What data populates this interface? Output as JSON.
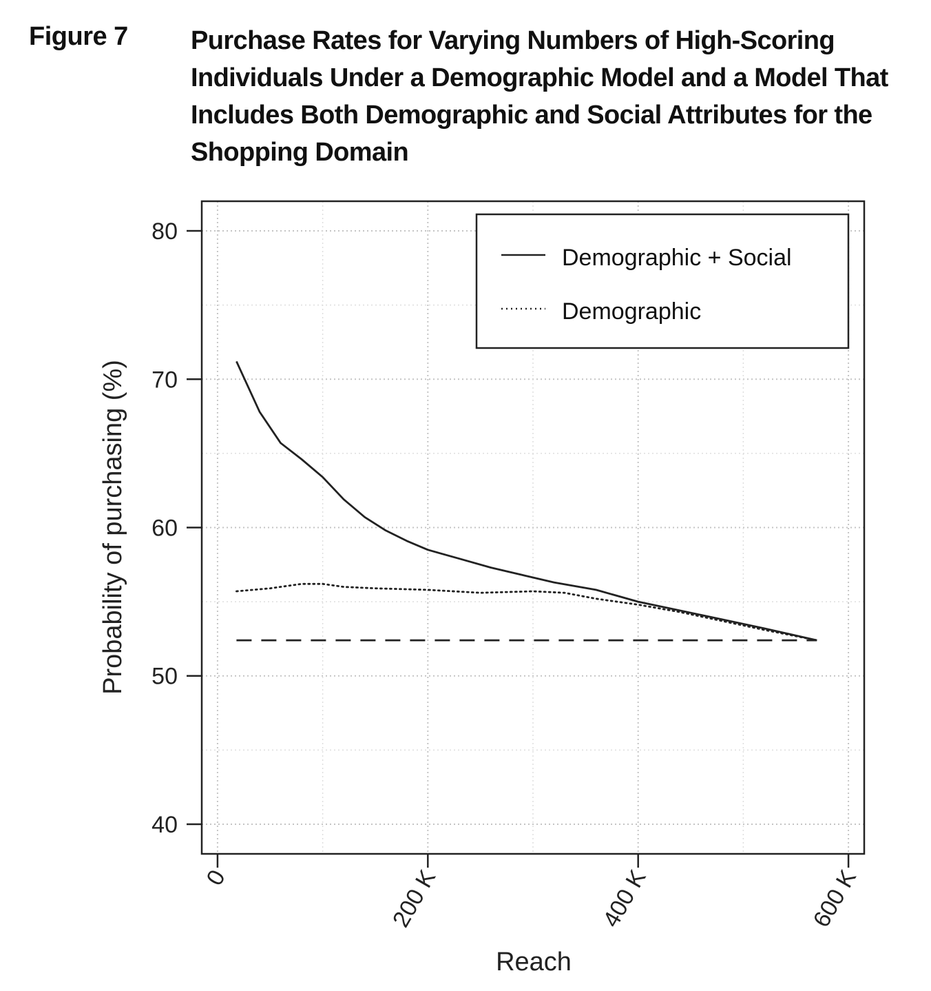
{
  "figure": {
    "label": "Figure 7",
    "title_lines": [
      "Purchase Rates for Varying Numbers of High-Scoring",
      "Individuals Under a Demographic Model and a Model That",
      "Includes Both Demographic and Social Attributes for the",
      "Shopping Domain"
    ]
  },
  "chart_data": {
    "type": "line",
    "xlabel": "Reach",
    "ylabel": "Probability of purchasing (%)",
    "xlim": [
      -15000,
      615000
    ],
    "ylim": [
      38,
      82
    ],
    "x_ticks": [
      0,
      200000,
      400000,
      600000
    ],
    "x_tick_labels": [
      "0",
      "200 K",
      "400 K",
      "600 K"
    ],
    "y_ticks": [
      40,
      50,
      60,
      70,
      80
    ],
    "y_tick_labels": [
      "40",
      "50",
      "60",
      "70",
      "80"
    ],
    "grid": true,
    "legend_position": "top-right",
    "series": [
      {
        "name": "Demographic + Social",
        "style": "solid",
        "x": [
          18000,
          40000,
          60000,
          80000,
          100000,
          120000,
          140000,
          160000,
          180000,
          200000,
          230000,
          260000,
          290000,
          320000,
          360000,
          400000,
          440000,
          480000,
          520000,
          570000
        ],
        "y": [
          71.2,
          67.8,
          65.7,
          64.6,
          63.4,
          61.9,
          60.7,
          59.8,
          59.1,
          58.5,
          57.9,
          57.3,
          56.8,
          56.3,
          55.8,
          55.0,
          54.4,
          53.8,
          53.2,
          52.4
        ]
      },
      {
        "name": "Demographic",
        "style": "dotted",
        "x": [
          18000,
          50000,
          80000,
          100000,
          120000,
          150000,
          200000,
          250000,
          300000,
          330000,
          360000,
          400000,
          440000,
          480000,
          520000,
          570000
        ],
        "y": [
          55.7,
          55.9,
          56.2,
          56.2,
          56.0,
          55.9,
          55.8,
          55.6,
          55.7,
          55.6,
          55.2,
          54.8,
          54.3,
          53.7,
          53.1,
          52.4
        ]
      },
      {
        "style": "dashed",
        "x": [
          18000,
          570000
        ],
        "y": [
          52.4,
          52.4
        ]
      }
    ]
  }
}
